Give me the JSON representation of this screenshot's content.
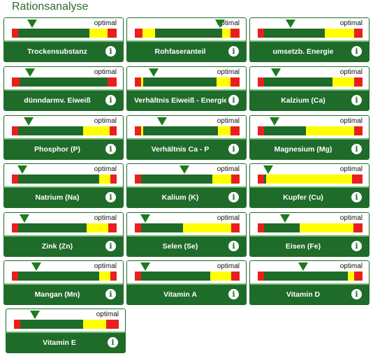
{
  "page": {
    "title": "Rationsanalyse"
  },
  "colors": {
    "red": "#e8201c",
    "yellow": "#ffff00",
    "green": "#1f6b2a",
    "marker": "#1f7a1f"
  },
  "optimal_label": "optimal",
  "cards": [
    {
      "label": "Trockensubstanz",
      "segments": [
        [
          "red",
          0.06
        ],
        [
          "green",
          0.68
        ],
        [
          "yellow",
          0.17
        ],
        [
          "red",
          0.09
        ]
      ],
      "marker": 0.19
    },
    {
      "label": "Rohfaseranteil",
      "segments": [
        [
          "red",
          0.07
        ],
        [
          "yellow",
          0.12
        ],
        [
          "green",
          0.64
        ],
        [
          "yellow",
          0.08
        ],
        [
          "red",
          0.09
        ]
      ],
      "marker": 0.81
    },
    {
      "label": "umsetzb. Energie",
      "segments": [
        [
          "red",
          0.06
        ],
        [
          "green",
          0.58
        ],
        [
          "yellow",
          0.28
        ],
        [
          "red",
          0.08
        ]
      ],
      "marker": 0.31
    },
    {
      "label": "dünndarmv. Eiweiß",
      "segments": [
        [
          "red",
          0.07
        ],
        [
          "green",
          0.84
        ],
        [
          "red",
          0.09
        ]
      ],
      "marker": 0.17
    },
    {
      "label": "Verhältnis Eiweiß - Energie",
      "segments": [
        [
          "red",
          0.06
        ],
        [
          "yellow",
          0.02
        ],
        [
          "green",
          0.7
        ],
        [
          "yellow",
          0.13
        ],
        [
          "red",
          0.09
        ]
      ],
      "marker": 0.18
    },
    {
      "label": "Kalzium (Ca)",
      "segments": [
        [
          "red",
          0.06
        ],
        [
          "green",
          0.65
        ],
        [
          "yellow",
          0.21
        ],
        [
          "red",
          0.08
        ]
      ],
      "marker": 0.17
    },
    {
      "label": "Phosphor (P)",
      "segments": [
        [
          "red",
          0.06
        ],
        [
          "green",
          0.62
        ],
        [
          "yellow",
          0.25
        ],
        [
          "red",
          0.07
        ]
      ],
      "marker": 0.16
    },
    {
      "label": "Verhältnis Ca - P",
      "segments": [
        [
          "red",
          0.06
        ],
        [
          "yellow",
          0.02
        ],
        [
          "green",
          0.71
        ],
        [
          "yellow",
          0.12
        ],
        [
          "red",
          0.09
        ]
      ],
      "marker": 0.26
    },
    {
      "label": "Magnesium (Mg)",
      "segments": [
        [
          "red",
          0.06
        ],
        [
          "green",
          0.4
        ],
        [
          "yellow",
          0.46
        ],
        [
          "red",
          0.08
        ]
      ],
      "marker": 0.16
    },
    {
      "label": "Natrium (Na)",
      "segments": [
        [
          "red",
          0.06
        ],
        [
          "green",
          0.77
        ],
        [
          "yellow",
          0.11
        ],
        [
          "red",
          0.06
        ]
      ],
      "marker": 0.1
    },
    {
      "label": "Kalium (K)",
      "segments": [
        [
          "red",
          0.06
        ],
        [
          "green",
          0.68
        ],
        [
          "yellow",
          0.18
        ],
        [
          "red",
          0.08
        ]
      ],
      "marker": 0.47
    },
    {
      "label": "Kupfer (Cu)",
      "segments": [
        [
          "red",
          0.06
        ],
        [
          "green",
          0.02
        ],
        [
          "yellow",
          0.82
        ],
        [
          "red",
          0.1
        ]
      ],
      "marker": 0.1
    },
    {
      "label": "Zink (Zn)",
      "segments": [
        [
          "red",
          0.06
        ],
        [
          "green",
          0.65
        ],
        [
          "yellow",
          0.21
        ],
        [
          "red",
          0.08
        ]
      ],
      "marker": 0.12
    },
    {
      "label": "Selen (Se)",
      "segments": [
        [
          "red",
          0.06
        ],
        [
          "green",
          0.4
        ],
        [
          "yellow",
          0.46
        ],
        [
          "red",
          0.08
        ]
      ],
      "marker": 0.1
    },
    {
      "label": "Eisen (Fe)",
      "segments": [
        [
          "red",
          0.06
        ],
        [
          "green",
          0.34
        ],
        [
          "yellow",
          0.51
        ],
        [
          "red",
          0.09
        ]
      ],
      "marker": 0.26
    },
    {
      "label": "Mangan (Mn)",
      "segments": [
        [
          "red",
          0.06
        ],
        [
          "green",
          0.77
        ],
        [
          "yellow",
          0.11
        ],
        [
          "red",
          0.06
        ]
      ],
      "marker": 0.23
    },
    {
      "label": "Vitamin A",
      "segments": [
        [
          "red",
          0.06
        ],
        [
          "green",
          0.66
        ],
        [
          "yellow",
          0.2
        ],
        [
          "red",
          0.08
        ]
      ],
      "marker": 0.1
    },
    {
      "label": "Vitamin D",
      "segments": [
        [
          "red",
          0.06
        ],
        [
          "green",
          0.8
        ],
        [
          "yellow",
          0.06
        ],
        [
          "red",
          0.08
        ]
      ],
      "marker": 0.43
    },
    {
      "label": "Vitamin E",
      "segments": [
        [
          "red",
          0.06
        ],
        [
          "green",
          0.6
        ],
        [
          "yellow",
          0.22
        ],
        [
          "red",
          0.12
        ]
      ],
      "marker": 0.2
    }
  ]
}
